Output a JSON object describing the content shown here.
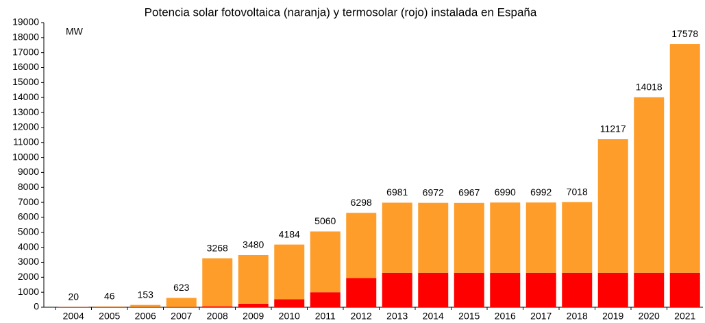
{
  "chart_data": {
    "type": "stacked_bar",
    "title": "Potencia solar fotovoltaica (naranja) y termosolar (rojo) instalada en España",
    "y_label": "MW",
    "categories": [
      "2004",
      "2005",
      "2006",
      "2007",
      "2008",
      "2009",
      "2010",
      "2011",
      "2012",
      "2013",
      "2014",
      "2015",
      "2016",
      "2017",
      "2018",
      "2019",
      "2020",
      "2021"
    ],
    "series": [
      {
        "name": "termosolar",
        "color": "#ff0000",
        "values": [
          11,
          11,
          11,
          11,
          61,
          232,
          532,
          999,
          1950,
          2300,
          2300,
          2300,
          2300,
          2300,
          2300,
          2300,
          2300,
          2300
        ]
      },
      {
        "name": "fotovoltaica",
        "color": "#ff9d2a",
        "values": [
          9,
          35,
          142,
          612,
          3207,
          3248,
          3652,
          4061,
          4348,
          4681,
          4672,
          4667,
          4690,
          4692,
          4718,
          8917,
          11718,
          15278
        ]
      }
    ],
    "totals": [
      20,
      46,
      153,
      623,
      3268,
      3480,
      4184,
      5060,
      6298,
      6981,
      6972,
      6967,
      6990,
      6992,
      7018,
      11217,
      14018,
      17578
    ],
    "ylim": [
      0,
      19000
    ],
    "yticks": [
      0,
      1000,
      2000,
      3000,
      4000,
      5000,
      6000,
      7000,
      8000,
      9000,
      10000,
      11000,
      12000,
      13000,
      14000,
      15000,
      16000,
      17000,
      18000,
      19000
    ]
  }
}
